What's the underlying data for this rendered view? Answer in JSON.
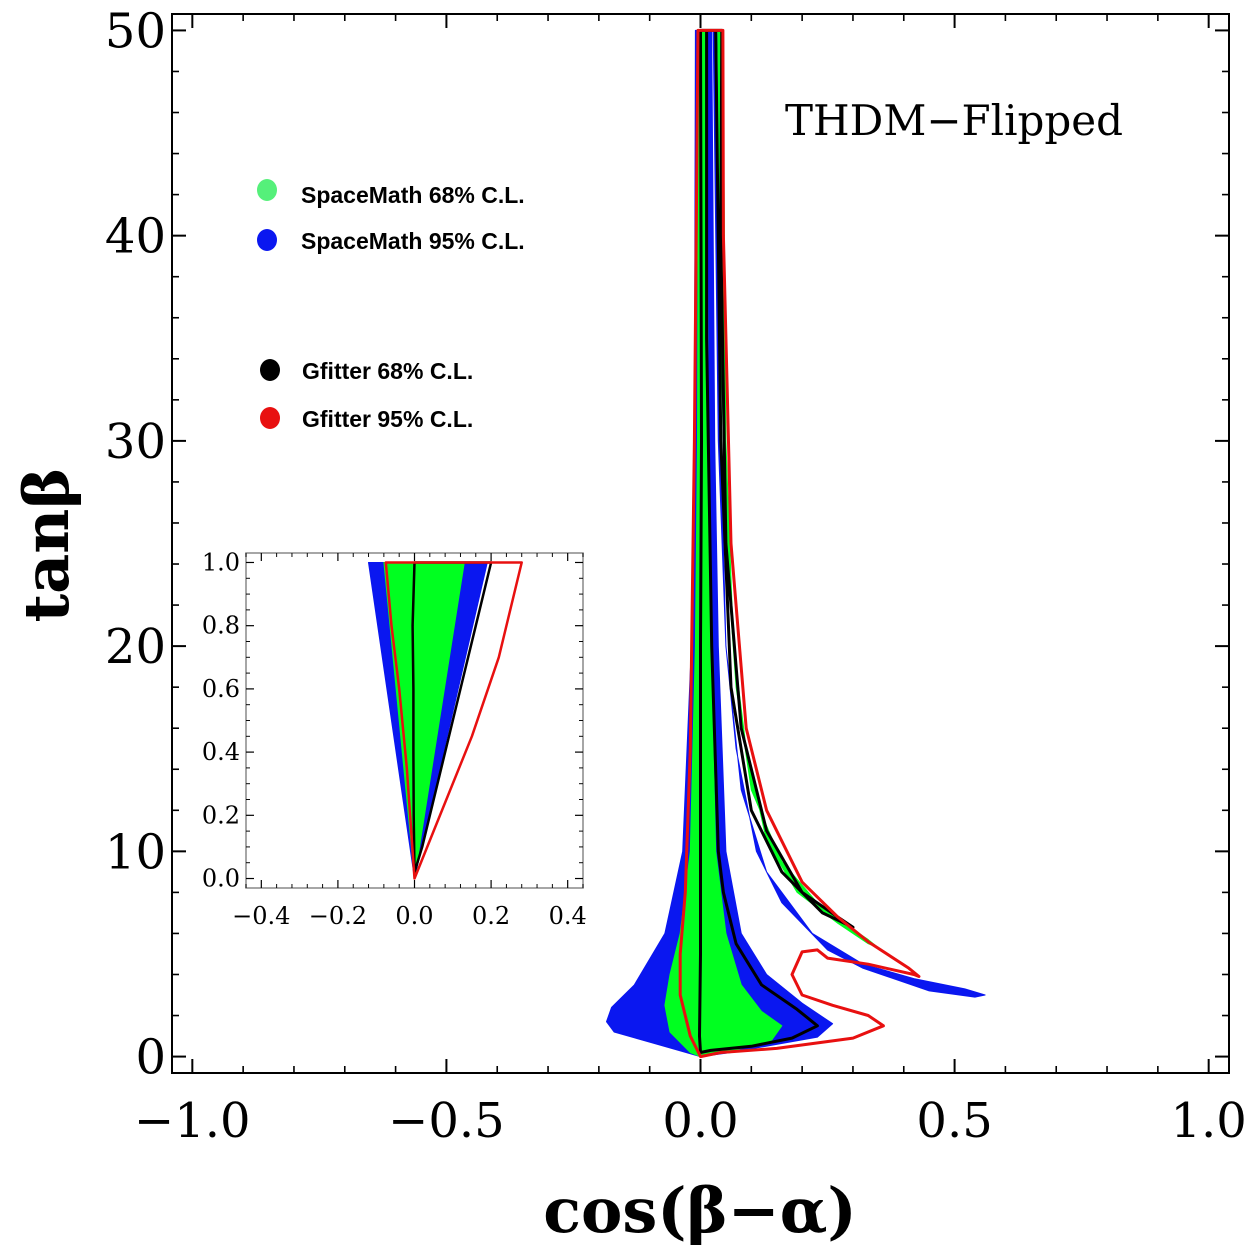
{
  "chart_data": [
    {
      "type": "contour",
      "title": "THDM−Flipped",
      "xlabel": "cos(β−α)",
      "ylabel": "tanβ",
      "xlim": [
        -1.04,
        1.04
      ],
      "ylim": [
        -0.8,
        50.8
      ],
      "xticks": [
        -1.0,
        -0.5,
        0.0,
        0.5,
        1.0
      ],
      "xtick_labels": [
        "−1.0",
        "−0.5",
        "0.0",
        "0.5",
        "1.0"
      ],
      "yticks": [
        0,
        10,
        20,
        30,
        40,
        50
      ],
      "ytick_labels": [
        "0",
        "10",
        "20",
        "30",
        "40",
        "50"
      ],
      "grid": false,
      "legend_position": "upper-left",
      "legend": [
        {
          "label": "SpaceMath 68% C.L.",
          "color": "#55f07a"
        },
        {
          "label": "SpaceMath 95% C.L.",
          "color": "#0a17f0"
        },
        {
          "label": "Gfitter 68% C.L.",
          "color": "#000000"
        },
        {
          "label": "Gfitter 95% C.L.",
          "color": "#e81010"
        }
      ],
      "series": [
        {
          "name": "SpaceMath 95% C.L. (left branch)",
          "kind": "filled",
          "color": "#0a17f0",
          "points": [
            [
              -0.01,
              50
            ],
            [
              -0.012,
              30
            ],
            [
              -0.018,
              20
            ],
            [
              -0.035,
              10
            ],
            [
              -0.07,
              6
            ],
            [
              -0.13,
              3.5
            ],
            [
              -0.175,
              2.4
            ],
            [
              -0.185,
              1.7
            ],
            [
              -0.17,
              1.2
            ],
            [
              -0.1,
              0.7
            ],
            [
              0.0,
              0.0
            ],
            [
              0.06,
              0.2
            ],
            [
              0.23,
              0.95
            ],
            [
              0.26,
              1.6
            ],
            [
              0.2,
              2.6
            ],
            [
              0.13,
              4
            ],
            [
              0.08,
              6
            ],
            [
              0.05,
              10
            ],
            [
              0.035,
              20
            ],
            [
              0.028,
              30
            ],
            [
              0.022,
              50
            ]
          ]
        },
        {
          "name": "SpaceMath 68% C.L. (left branch)",
          "kind": "filled",
          "color": "#00ff20",
          "points": [
            [
              -0.004,
              50
            ],
            [
              -0.006,
              30
            ],
            [
              -0.01,
              20
            ],
            [
              -0.02,
              10
            ],
            [
              -0.04,
              6
            ],
            [
              -0.06,
              4
            ],
            [
              -0.07,
              2.5
            ],
            [
              -0.06,
              1.2
            ],
            [
              -0.02,
              0.2
            ],
            [
              0.0,
              0.0
            ],
            [
              0.05,
              0.2
            ],
            [
              0.14,
              0.8
            ],
            [
              0.16,
              1.5
            ],
            [
              0.12,
              2.2
            ],
            [
              0.08,
              3.5
            ],
            [
              0.05,
              6
            ],
            [
              0.03,
              10
            ],
            [
              0.02,
              20
            ],
            [
              0.015,
              30
            ],
            [
              0.012,
              50
            ]
          ]
        },
        {
          "name": "SpaceMath 95% C.L. (right branch)",
          "kind": "filled",
          "color": "#0a17f0",
          "points": [
            [
              0.025,
              50
            ],
            [
              0.035,
              30
            ],
            [
              0.05,
              20
            ],
            [
              0.08,
              13
            ],
            [
              0.13,
              9
            ],
            [
              0.22,
              6
            ],
            [
              0.32,
              4.5
            ],
            [
              0.42,
              3.8
            ],
            [
              0.52,
              3.3
            ],
            [
              0.56,
              3.0
            ],
            [
              0.54,
              2.9
            ],
            [
              0.45,
              3.2
            ],
            [
              0.32,
              4.3
            ],
            [
              0.25,
              5.2
            ],
            [
              0.16,
              7.5
            ],
            [
              0.11,
              10
            ],
            [
              0.07,
              15
            ],
            [
              0.05,
              20
            ],
            [
              0.04,
              30
            ],
            [
              0.032,
              50
            ]
          ]
        },
        {
          "name": "SpaceMath 68% C.L. (right branch)",
          "kind": "filled",
          "color": "#00ff20",
          "points": [
            [
              0.034,
              50
            ],
            [
              0.04,
              35
            ],
            [
              0.05,
              25
            ],
            [
              0.07,
              18
            ],
            [
              0.1,
              13
            ],
            [
              0.16,
              9.5
            ],
            [
              0.24,
              7.2
            ],
            [
              0.33,
              5.7
            ],
            [
              0.35,
              5.3
            ],
            [
              0.33,
              5.5
            ],
            [
              0.27,
              6.5
            ],
            [
              0.19,
              8
            ],
            [
              0.13,
              10.5
            ],
            [
              0.09,
              15
            ],
            [
              0.065,
              20
            ],
            [
              0.05,
              30
            ],
            [
              0.044,
              50
            ]
          ]
        },
        {
          "name": "Gfitter 68% C.L.",
          "kind": "contour",
          "color": "#000000",
          "points": [
            [
              0.0,
              50
            ],
            [
              0.002,
              30
            ],
            [
              0.0,
              20
            ],
            [
              0.0,
              10
            ],
            [
              0.0,
              5
            ],
            [
              -0.002,
              1
            ],
            [
              0.0,
              0.2
            ],
            [
              0.02,
              0.3
            ],
            [
              0.1,
              0.5
            ],
            [
              0.18,
              0.9
            ],
            [
              0.23,
              1.5
            ],
            [
              0.19,
              2.3
            ],
            [
              0.12,
              3.5
            ],
            [
              0.07,
              5.5
            ],
            [
              0.045,
              8
            ],
            [
              0.035,
              10
            ],
            [
              0.022,
              20
            ],
            [
              0.012,
              35
            ],
            [
              0.012,
              50
            ],
            [
              0.03,
              50
            ],
            [
              0.04,
              30
            ],
            [
              0.06,
              18
            ],
            [
              0.1,
              12
            ],
            [
              0.16,
              9
            ],
            [
              0.24,
              7
            ],
            [
              0.3,
              6.3
            ],
            [
              0.27,
              6.8
            ],
            [
              0.2,
              8
            ],
            [
              0.13,
              11
            ],
            [
              0.08,
              16
            ],
            [
              0.05,
              25
            ],
            [
              0.04,
              40
            ],
            [
              0.042,
              50
            ]
          ]
        },
        {
          "name": "Gfitter 95% C.L.",
          "kind": "contour",
          "color": "#e81010",
          "points": [
            [
              -0.005,
              50
            ],
            [
              -0.012,
              30
            ],
            [
              -0.02,
              15
            ],
            [
              -0.03,
              8
            ],
            [
              -0.04,
              5
            ],
            [
              -0.04,
              3
            ],
            [
              -0.02,
              1
            ],
            [
              0.0,
              0.0
            ],
            [
              0.04,
              0.2
            ],
            [
              0.15,
              0.4
            ],
            [
              0.3,
              0.9
            ],
            [
              0.36,
              1.5
            ],
            [
              0.33,
              2
            ],
            [
              0.26,
              2.5
            ],
            [
              0.2,
              3
            ],
            [
              0.18,
              4
            ],
            [
              0.2,
              5.1
            ],
            [
              0.23,
              5.2
            ],
            [
              0.25,
              4.8
            ],
            [
              0.33,
              4.5
            ],
            [
              0.42,
              4.0
            ],
            [
              0.43,
              3.9
            ],
            [
              0.41,
              4.3
            ],
            [
              0.33,
              5.6
            ],
            [
              0.27,
              6.8
            ],
            [
              0.2,
              8.5
            ],
            [
              0.13,
              12
            ],
            [
              0.09,
              16
            ],
            [
              0.06,
              25
            ],
            [
              0.045,
              40
            ],
            [
              0.044,
              50
            ]
          ]
        }
      ]
    },
    {
      "type": "contour",
      "title": "inset",
      "xlim": [
        -0.44,
        0.44
      ],
      "ylim": [
        -0.03,
        1.03
      ],
      "xticks": [
        -0.4,
        -0.2,
        0.0,
        0.2,
        0.4
      ],
      "xtick_labels": [
        "−0.4",
        "−0.2",
        "0.0",
        "0.2",
        "0.4"
      ],
      "yticks": [
        0.0,
        0.2,
        0.4,
        0.6,
        0.8,
        1.0
      ],
      "ytick_labels": [
        "0.0",
        "0.2",
        "0.4",
        "0.6",
        "0.8",
        "1.0"
      ],
      "series": [
        {
          "name": "SpaceMath 95% C.L.",
          "kind": "filled",
          "color": "#0a17f0",
          "points": [
            [
              -0.12,
              1.0
            ],
            [
              0.19,
              1.0
            ],
            [
              0.0,
              0.0
            ]
          ]
        },
        {
          "name": "SpaceMath 68% C.L.",
          "kind": "filled",
          "color": "#00ff20",
          "points": [
            [
              -0.08,
              1.0
            ],
            [
              0.13,
              1.0
            ],
            [
              0.0,
              0.0
            ]
          ]
        },
        {
          "name": "Gfitter 68% C.L.",
          "kind": "contour",
          "color": "#000000",
          "points": [
            [
              0.0,
              1.0
            ],
            [
              -0.005,
              0.8
            ],
            [
              -0.003,
              0.6
            ],
            [
              -0.003,
              0.4
            ],
            [
              -0.002,
              0.2
            ],
            [
              0.0,
              0.02
            ],
            [
              0.02,
              0.1
            ],
            [
              0.1,
              0.5
            ],
            [
              0.16,
              0.8
            ],
            [
              0.2,
              1.0
            ]
          ]
        },
        {
          "name": "Gfitter 95% C.L.",
          "kind": "contour",
          "color": "#e81010",
          "points": [
            [
              -0.075,
              1.0
            ],
            [
              -0.06,
              0.8
            ],
            [
              -0.04,
              0.6
            ],
            [
              -0.02,
              0.35
            ],
            [
              0.0,
              0.0
            ],
            [
              0.05,
              0.15
            ],
            [
              0.15,
              0.45
            ],
            [
              0.22,
              0.7
            ],
            [
              0.28,
              1.0
            ]
          ]
        }
      ]
    }
  ]
}
